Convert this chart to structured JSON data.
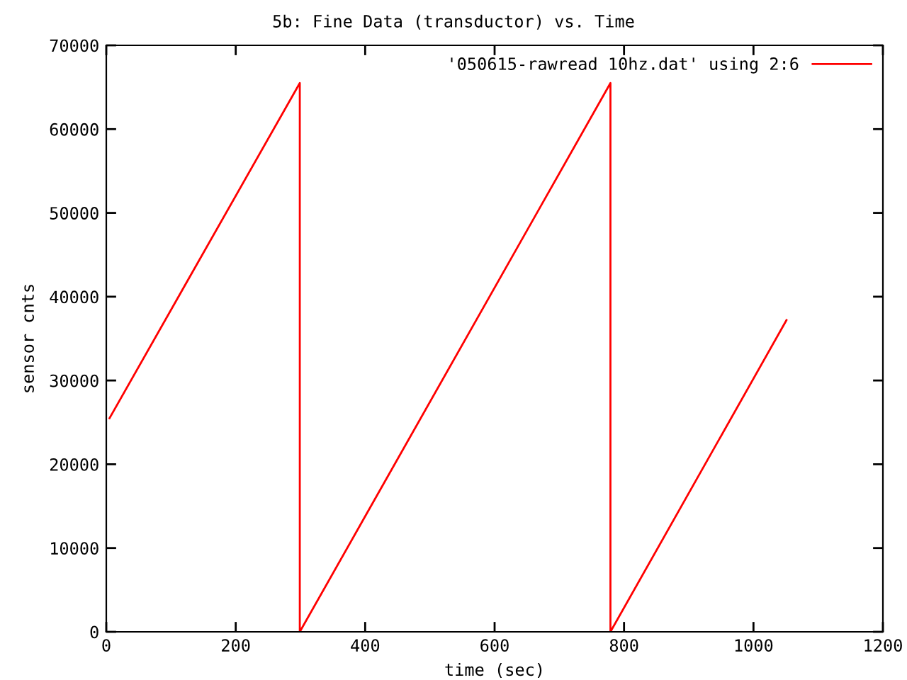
{
  "chart_data": {
    "type": "line",
    "title": "5b: Fine Data (transductor) vs. Time",
    "xlabel": "time (sec)",
    "ylabel": "sensor cnts",
    "series": [
      {
        "name": "'050615-rawread 10hz.dat' using 2:6",
        "color": "#ff0000",
        "x": [
          5,
          299,
          299,
          779,
          779,
          1051
        ],
        "values": [
          25500,
          65500,
          0,
          65500,
          0,
          37200
        ]
      }
    ],
    "xlim": [
      0,
      1200
    ],
    "xticks": [
      0,
      200,
      400,
      600,
      800,
      1000,
      1200
    ],
    "ylim": [
      0,
      70000
    ],
    "yticks": [
      0,
      10000,
      20000,
      30000,
      40000,
      50000,
      60000,
      70000
    ],
    "grid": false,
    "legend": "top right",
    "marker": "none",
    "line_style": "solid"
  }
}
